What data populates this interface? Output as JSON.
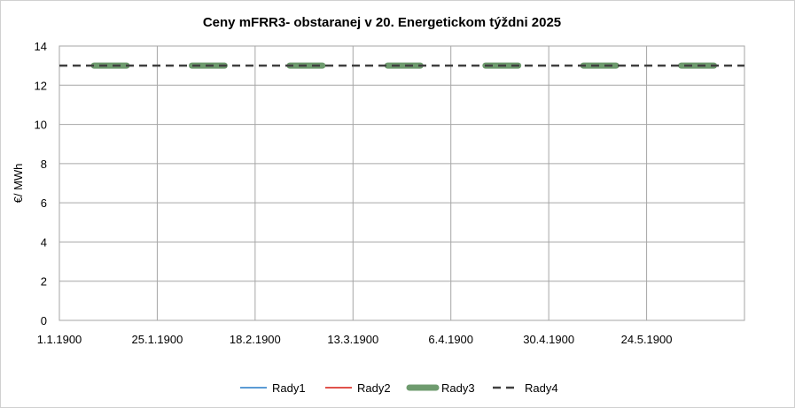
{
  "chart_data": {
    "type": "line",
    "title": "Ceny mFRR3- obstaranej v 20. Energetickom týždni 2025",
    "xlabel": "",
    "ylabel": "€/ MWh",
    "ylim": [
      0,
      14
    ],
    "yticks": [
      "0",
      "2",
      "4",
      "6",
      "8",
      "10",
      "12",
      "14"
    ],
    "xlim_days": [
      1,
      169
    ],
    "xticks": [
      {
        "label": "1.1.1900",
        "day": 1
      },
      {
        "label": "25.1.1900",
        "day": 25
      },
      {
        "label": "18.2.1900",
        "day": 49
      },
      {
        "label": "13.3.1900",
        "day": 73
      },
      {
        "label": "6.4.1900",
        "day": 97
      },
      {
        "label": "30.4.1900",
        "day": 121
      },
      {
        "label": "24.5.1900",
        "day": 145
      }
    ],
    "grid": true,
    "legend_position": "bottom",
    "series": [
      {
        "name": "Rady1",
        "color": "#5B9BD5",
        "style": "solid-thin",
        "points": []
      },
      {
        "name": "Rady2",
        "color": "#E0524B",
        "style": "solid-thin",
        "points": []
      },
      {
        "name": "Rady3",
        "color": "#6E9B6E",
        "style": "solid-thick",
        "segments": [
          {
            "x": [
              9.5,
              17.5
            ],
            "y": 13
          },
          {
            "x": [
              33.5,
              41.5
            ],
            "y": 13
          },
          {
            "x": [
              57.5,
              65.5
            ],
            "y": 13
          },
          {
            "x": [
              81.5,
              89.5
            ],
            "y": 13
          },
          {
            "x": [
              105.5,
              113.5
            ],
            "y": 13
          },
          {
            "x": [
              129.5,
              137.5
            ],
            "y": 13
          },
          {
            "x": [
              153.5,
              161.5
            ],
            "y": 13
          }
        ]
      },
      {
        "name": "Rady4",
        "color": "#404040",
        "style": "dashed",
        "x": [
          1,
          169
        ],
        "y": [
          13,
          13
        ]
      }
    ]
  }
}
